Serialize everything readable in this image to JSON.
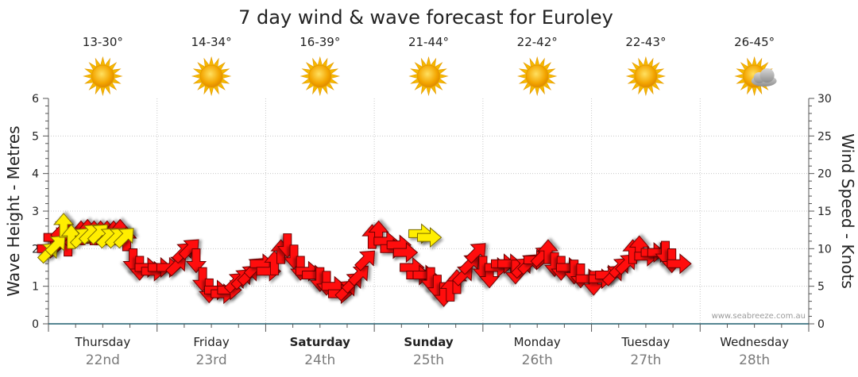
{
  "chart_data": {
    "type": "line",
    "title": "7 day wind & wave forecast for Euroley",
    "left_axis": {
      "label": "Wave Height - Metres",
      "range": [
        0,
        6
      ],
      "ticks": [
        "0",
        "1",
        "2",
        "3",
        "4",
        "5",
        "6"
      ]
    },
    "right_axis": {
      "label": "Wind Speed - Knots",
      "range": [
        0,
        30
      ],
      "ticks": [
        "0",
        "5",
        "10",
        "15",
        "20",
        "25",
        "30"
      ]
    },
    "grid": true,
    "days": [
      {
        "name": "Thursday",
        "date": "22nd",
        "temp": "13-30°",
        "icon": "sun-icon",
        "bold": false
      },
      {
        "name": "Friday",
        "date": "23rd",
        "temp": "14-34°",
        "icon": "sun-icon",
        "bold": false
      },
      {
        "name": "Saturday",
        "date": "24th",
        "temp": "16-39°",
        "icon": "sun-icon",
        "bold": true
      },
      {
        "name": "Sunday",
        "date": "25th",
        "temp": "21-44°",
        "icon": "sun-icon",
        "bold": true
      },
      {
        "name": "Monday",
        "date": "26th",
        "temp": "22-42°",
        "icon": "sun-icon",
        "bold": false
      },
      {
        "name": "Tuesday",
        "date": "27th",
        "temp": "22-43°",
        "icon": "sun-icon",
        "bold": false
      },
      {
        "name": "Wednesday",
        "date": "28th",
        "temp": "26-45°",
        "icon": "sun-cloud-icon",
        "bold": false
      }
    ],
    "wind_series": [
      {
        "x": 0.0,
        "y": 10.0,
        "d": "e"
      },
      {
        "x": 0.06,
        "y": 11.5,
        "d": "e"
      },
      {
        "x": 0.12,
        "y": 12.5,
        "d": "ne"
      },
      {
        "x": 0.18,
        "y": 10.5,
        "d": "n"
      },
      {
        "x": 0.24,
        "y": 11.5,
        "d": "ne"
      },
      {
        "x": 0.3,
        "y": 12.0,
        "d": "n"
      },
      {
        "x": 0.36,
        "y": 12.2,
        "d": "n"
      },
      {
        "x": 0.42,
        "y": 12.0,
        "d": "n"
      },
      {
        "x": 0.48,
        "y": 12.0,
        "d": "n"
      },
      {
        "x": 0.54,
        "y": 12.0,
        "d": "n"
      },
      {
        "x": 0.6,
        "y": 12.0,
        "d": "n"
      },
      {
        "x": 0.66,
        "y": 12.2,
        "d": "n"
      },
      {
        "x": 0.72,
        "y": 11.2,
        "d": "n"
      },
      {
        "x": 0.78,
        "y": 8.5,
        "d": "s"
      },
      {
        "x": 0.84,
        "y": 7.5,
        "d": "s"
      },
      {
        "x": 0.9,
        "y": 7.5,
        "d": "e"
      },
      {
        "x": 0.96,
        "y": 7.0,
        "d": "e"
      },
      {
        "x": 1.02,
        "y": 7.5,
        "d": "e"
      },
      {
        "x": 1.1,
        "y": 7.5,
        "d": "e"
      },
      {
        "x": 1.18,
        "y": 7.8,
        "d": "ne"
      },
      {
        "x": 1.24,
        "y": 9.5,
        "d": "ne"
      },
      {
        "x": 1.3,
        "y": 10.0,
        "d": "ne"
      },
      {
        "x": 1.36,
        "y": 8.5,
        "d": "s"
      },
      {
        "x": 1.42,
        "y": 6.0,
        "d": "s"
      },
      {
        "x": 1.48,
        "y": 4.5,
        "d": "s"
      },
      {
        "x": 1.54,
        "y": 4.5,
        "d": "e"
      },
      {
        "x": 1.6,
        "y": 4.0,
        "d": "e"
      },
      {
        "x": 1.66,
        "y": 4.5,
        "d": "e"
      },
      {
        "x": 1.72,
        "y": 5.5,
        "d": "ne"
      },
      {
        "x": 1.78,
        "y": 6.0,
        "d": "ne"
      },
      {
        "x": 1.84,
        "y": 6.5,
        "d": "ne"
      },
      {
        "x": 1.9,
        "y": 7.5,
        "d": "ne"
      },
      {
        "x": 1.96,
        "y": 8.0,
        "d": "e"
      },
      {
        "x": 2.02,
        "y": 7.0,
        "d": "e"
      },
      {
        "x": 2.08,
        "y": 8.0,
        "d": "n"
      },
      {
        "x": 2.14,
        "y": 9.5,
        "d": "n"
      },
      {
        "x": 2.2,
        "y": 10.5,
        "d": "s"
      },
      {
        "x": 2.26,
        "y": 9.0,
        "d": "s"
      },
      {
        "x": 2.32,
        "y": 7.5,
        "d": "s"
      },
      {
        "x": 2.38,
        "y": 7.0,
        "d": "e"
      },
      {
        "x": 2.44,
        "y": 6.5,
        "d": "e"
      },
      {
        "x": 2.5,
        "y": 6.0,
        "d": "s"
      },
      {
        "x": 2.56,
        "y": 5.5,
        "d": "s"
      },
      {
        "x": 2.62,
        "y": 5.0,
        "d": "e"
      },
      {
        "x": 2.68,
        "y": 4.0,
        "d": "e"
      },
      {
        "x": 2.74,
        "y": 4.5,
        "d": "ne"
      },
      {
        "x": 2.8,
        "y": 5.5,
        "d": "ne"
      },
      {
        "x": 2.86,
        "y": 6.5,
        "d": "ne"
      },
      {
        "x": 2.92,
        "y": 8.5,
        "d": "ne"
      },
      {
        "x": 2.98,
        "y": 11.5,
        "d": "n"
      },
      {
        "x": 3.04,
        "y": 12.0,
        "d": "n"
      },
      {
        "x": 3.1,
        "y": 11.0,
        "d": "e"
      },
      {
        "x": 3.16,
        "y": 10.0,
        "d": "e"
      },
      {
        "x": 3.22,
        "y": 10.5,
        "d": "e"
      },
      {
        "x": 3.28,
        "y": 9.5,
        "d": "e"
      },
      {
        "x": 3.34,
        "y": 7.5,
        "d": "e"
      },
      {
        "x": 3.4,
        "y": 6.5,
        "d": "e"
      },
      {
        "x": 3.46,
        "y": 6.5,
        "d": "e"
      },
      {
        "x": 3.52,
        "y": 6.0,
        "d": "s"
      },
      {
        "x": 3.58,
        "y": 5.0,
        "d": "s"
      },
      {
        "x": 3.64,
        "y": 4.0,
        "d": "s"
      },
      {
        "x": 3.7,
        "y": 4.5,
        "d": "n"
      },
      {
        "x": 3.76,
        "y": 5.5,
        "d": "n"
      },
      {
        "x": 3.82,
        "y": 6.5,
        "d": "ne"
      },
      {
        "x": 3.88,
        "y": 8.0,
        "d": "ne"
      },
      {
        "x": 3.94,
        "y": 9.5,
        "d": "ne"
      },
      {
        "x": 4.0,
        "y": 7.5,
        "d": "s"
      },
      {
        "x": 4.06,
        "y": 6.5,
        "d": "s"
      },
      {
        "x": 4.12,
        "y": 7.5,
        "d": "e"
      },
      {
        "x": 4.18,
        "y": 8.0,
        "d": "e"
      },
      {
        "x": 4.24,
        "y": 8.0,
        "d": "e"
      },
      {
        "x": 4.3,
        "y": 7.0,
        "d": "s"
      },
      {
        "x": 4.36,
        "y": 7.5,
        "d": "ne"
      },
      {
        "x": 4.42,
        "y": 8.0,
        "d": "ne"
      },
      {
        "x": 4.48,
        "y": 8.5,
        "d": "e"
      },
      {
        "x": 4.54,
        "y": 9.0,
        "d": "ne"
      },
      {
        "x": 4.6,
        "y": 9.5,
        "d": "n"
      },
      {
        "x": 4.66,
        "y": 8.0,
        "d": "s"
      },
      {
        "x": 4.72,
        "y": 7.5,
        "d": "s"
      },
      {
        "x": 4.78,
        "y": 7.5,
        "d": "e"
      },
      {
        "x": 4.84,
        "y": 7.0,
        "d": "s"
      },
      {
        "x": 4.9,
        "y": 6.5,
        "d": "s"
      },
      {
        "x": 4.96,
        "y": 6.0,
        "d": "e"
      },
      {
        "x": 5.02,
        "y": 5.5,
        "d": "s"
      },
      {
        "x": 5.08,
        "y": 6.0,
        "d": "e"
      },
      {
        "x": 5.14,
        "y": 6.5,
        "d": "e"
      },
      {
        "x": 5.2,
        "y": 6.5,
        "d": "ne"
      },
      {
        "x": 5.26,
        "y": 7.5,
        "d": "ne"
      },
      {
        "x": 5.32,
        "y": 8.0,
        "d": "ne"
      },
      {
        "x": 5.38,
        "y": 9.5,
        "d": "n"
      },
      {
        "x": 5.44,
        "y": 10.0,
        "d": "n"
      },
      {
        "x": 5.5,
        "y": 9.0,
        "d": "e"
      },
      {
        "x": 5.56,
        "y": 9.5,
        "d": "e"
      },
      {
        "x": 5.62,
        "y": 9.5,
        "d": "e"
      },
      {
        "x": 5.68,
        "y": 9.5,
        "d": "s"
      },
      {
        "x": 5.74,
        "y": 8.5,
        "d": "s"
      },
      {
        "x": 5.8,
        "y": 8.0,
        "d": "e"
      }
    ],
    "wave_series": [
      {
        "x": 0.0,
        "y": 1.9,
        "d": "ne"
      },
      {
        "x": 0.07,
        "y": 2.1,
        "d": "ne"
      },
      {
        "x": 0.14,
        "y": 2.6,
        "d": "n"
      },
      {
        "x": 0.21,
        "y": 2.3,
        "d": "n"
      },
      {
        "x": 0.3,
        "y": 2.3,
        "d": "ne"
      },
      {
        "x": 0.38,
        "y": 2.4,
        "d": "ne"
      },
      {
        "x": 0.46,
        "y": 2.4,
        "d": "ne"
      },
      {
        "x": 0.54,
        "y": 2.3,
        "d": "ne"
      },
      {
        "x": 0.62,
        "y": 2.3,
        "d": "ne"
      },
      {
        "x": 0.7,
        "y": 2.3,
        "d": "ne"
      },
      {
        "x": 3.42,
        "y": 2.4,
        "d": "e"
      },
      {
        "x": 3.5,
        "y": 2.3,
        "d": "e"
      }
    ]
  }
}
